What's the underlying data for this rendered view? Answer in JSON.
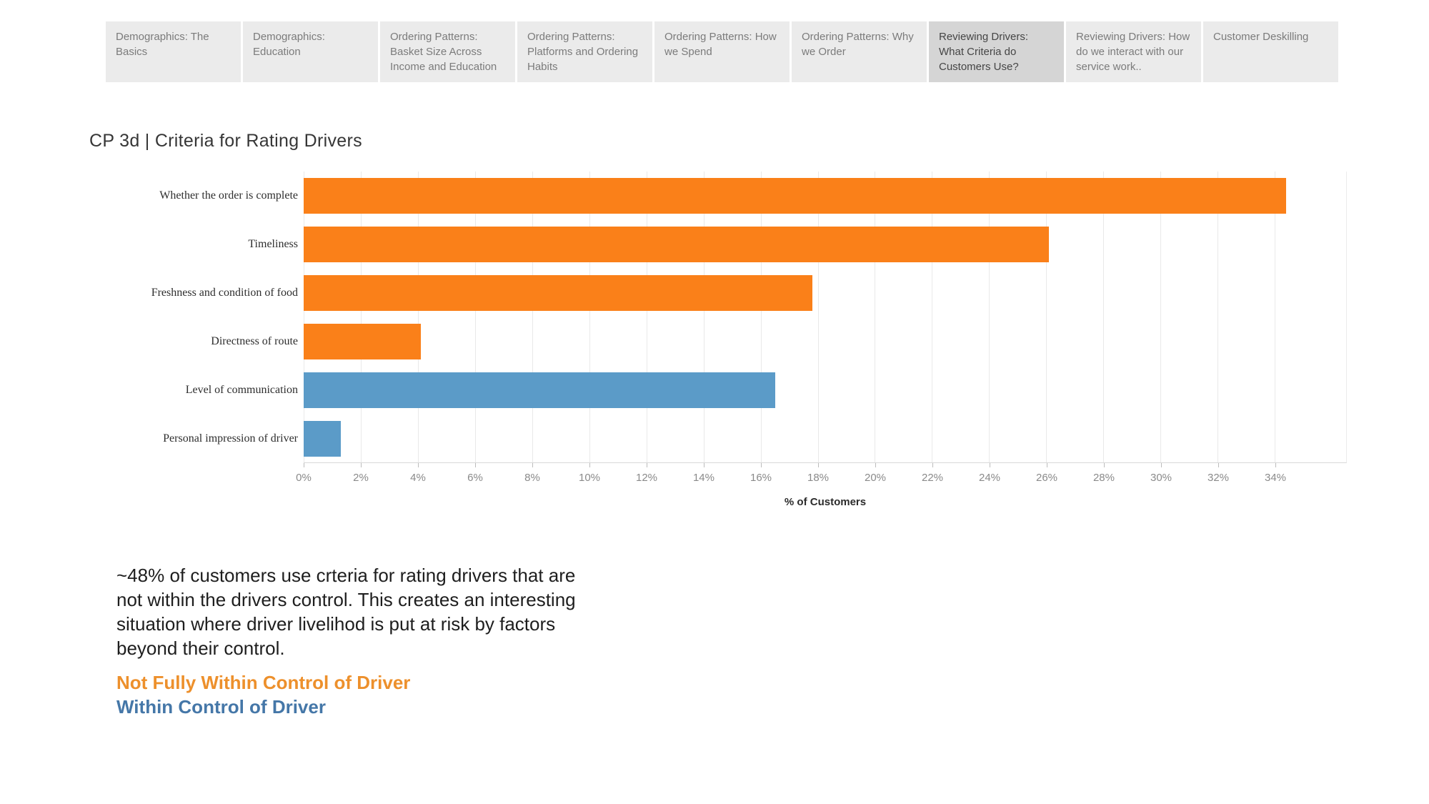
{
  "tabs": {
    "items": [
      {
        "id": "demographics-basics",
        "label": "Demographics: The Basics",
        "active": false
      },
      {
        "id": "demographics-education",
        "label": "Demographics: Education",
        "active": false
      },
      {
        "id": "ordering-basket-size",
        "label": "Ordering Patterns: Basket Size Across Income and Education",
        "active": false
      },
      {
        "id": "ordering-platforms",
        "label": "Ordering Patterns: Platforms and Ordering Habits",
        "active": false
      },
      {
        "id": "ordering-how-we-spend",
        "label": "Ordering Patterns: How we Spend",
        "active": false
      },
      {
        "id": "ordering-why-we-order",
        "label": "Ordering Patterns: Why we Order",
        "active": false
      },
      {
        "id": "reviewing-criteria",
        "label": "Reviewing Drivers: What Criteria do Customers Use?",
        "active": true
      },
      {
        "id": "reviewing-interaction",
        "label": "Reviewing Drivers: How do we interact with our service work..",
        "active": false
      },
      {
        "id": "customer-deskilling",
        "label": "Customer Deskilling",
        "active": false
      }
    ]
  },
  "chart_data": {
    "type": "bar",
    "orientation": "horizontal",
    "title": "CP 3d | Criteria for Rating Drivers",
    "categories": [
      "Whether the order is complete",
      "Timeliness",
      "Freshness and condition of food",
      "Directness of route",
      "Level of communication",
      "Personal impression of driver"
    ],
    "values": [
      34.4,
      26.1,
      17.8,
      4.1,
      16.5,
      1.3
    ],
    "bar_groups": [
      "Not Fully Within Control of Driver",
      "Not Fully Within Control of Driver",
      "Not Fully Within Control of Driver",
      "Not Fully Within Control of Driver",
      "Within Control of Driver",
      "Within Control of Driver"
    ],
    "bar_colors": [
      "#FA8019",
      "#FA8019",
      "#FA8019",
      "#FA8019",
      "#5B9BC8",
      "#5B9BC8"
    ],
    "xlabel": "% of Customers",
    "xlim": [
      0,
      36.5
    ],
    "xticks": [
      0,
      2,
      4,
      6,
      8,
      10,
      12,
      14,
      16,
      18,
      20,
      22,
      24,
      26,
      28,
      30,
      32,
      34
    ],
    "tick_suffix": "%",
    "grid": true,
    "legend_position": "bottom-left"
  },
  "annotation": {
    "text": "~48% of customers use crteria for rating drivers that are\nnot within the drivers control. This creates an interesting\nsituation where driver livelihod is put at risk by factors\nbeyond their control."
  },
  "legend": {
    "items": [
      {
        "label": "Not Fully Within Control of Driver",
        "color": "#ED902C"
      },
      {
        "label": "Within Control of Driver",
        "color": "#4577A8"
      }
    ]
  }
}
